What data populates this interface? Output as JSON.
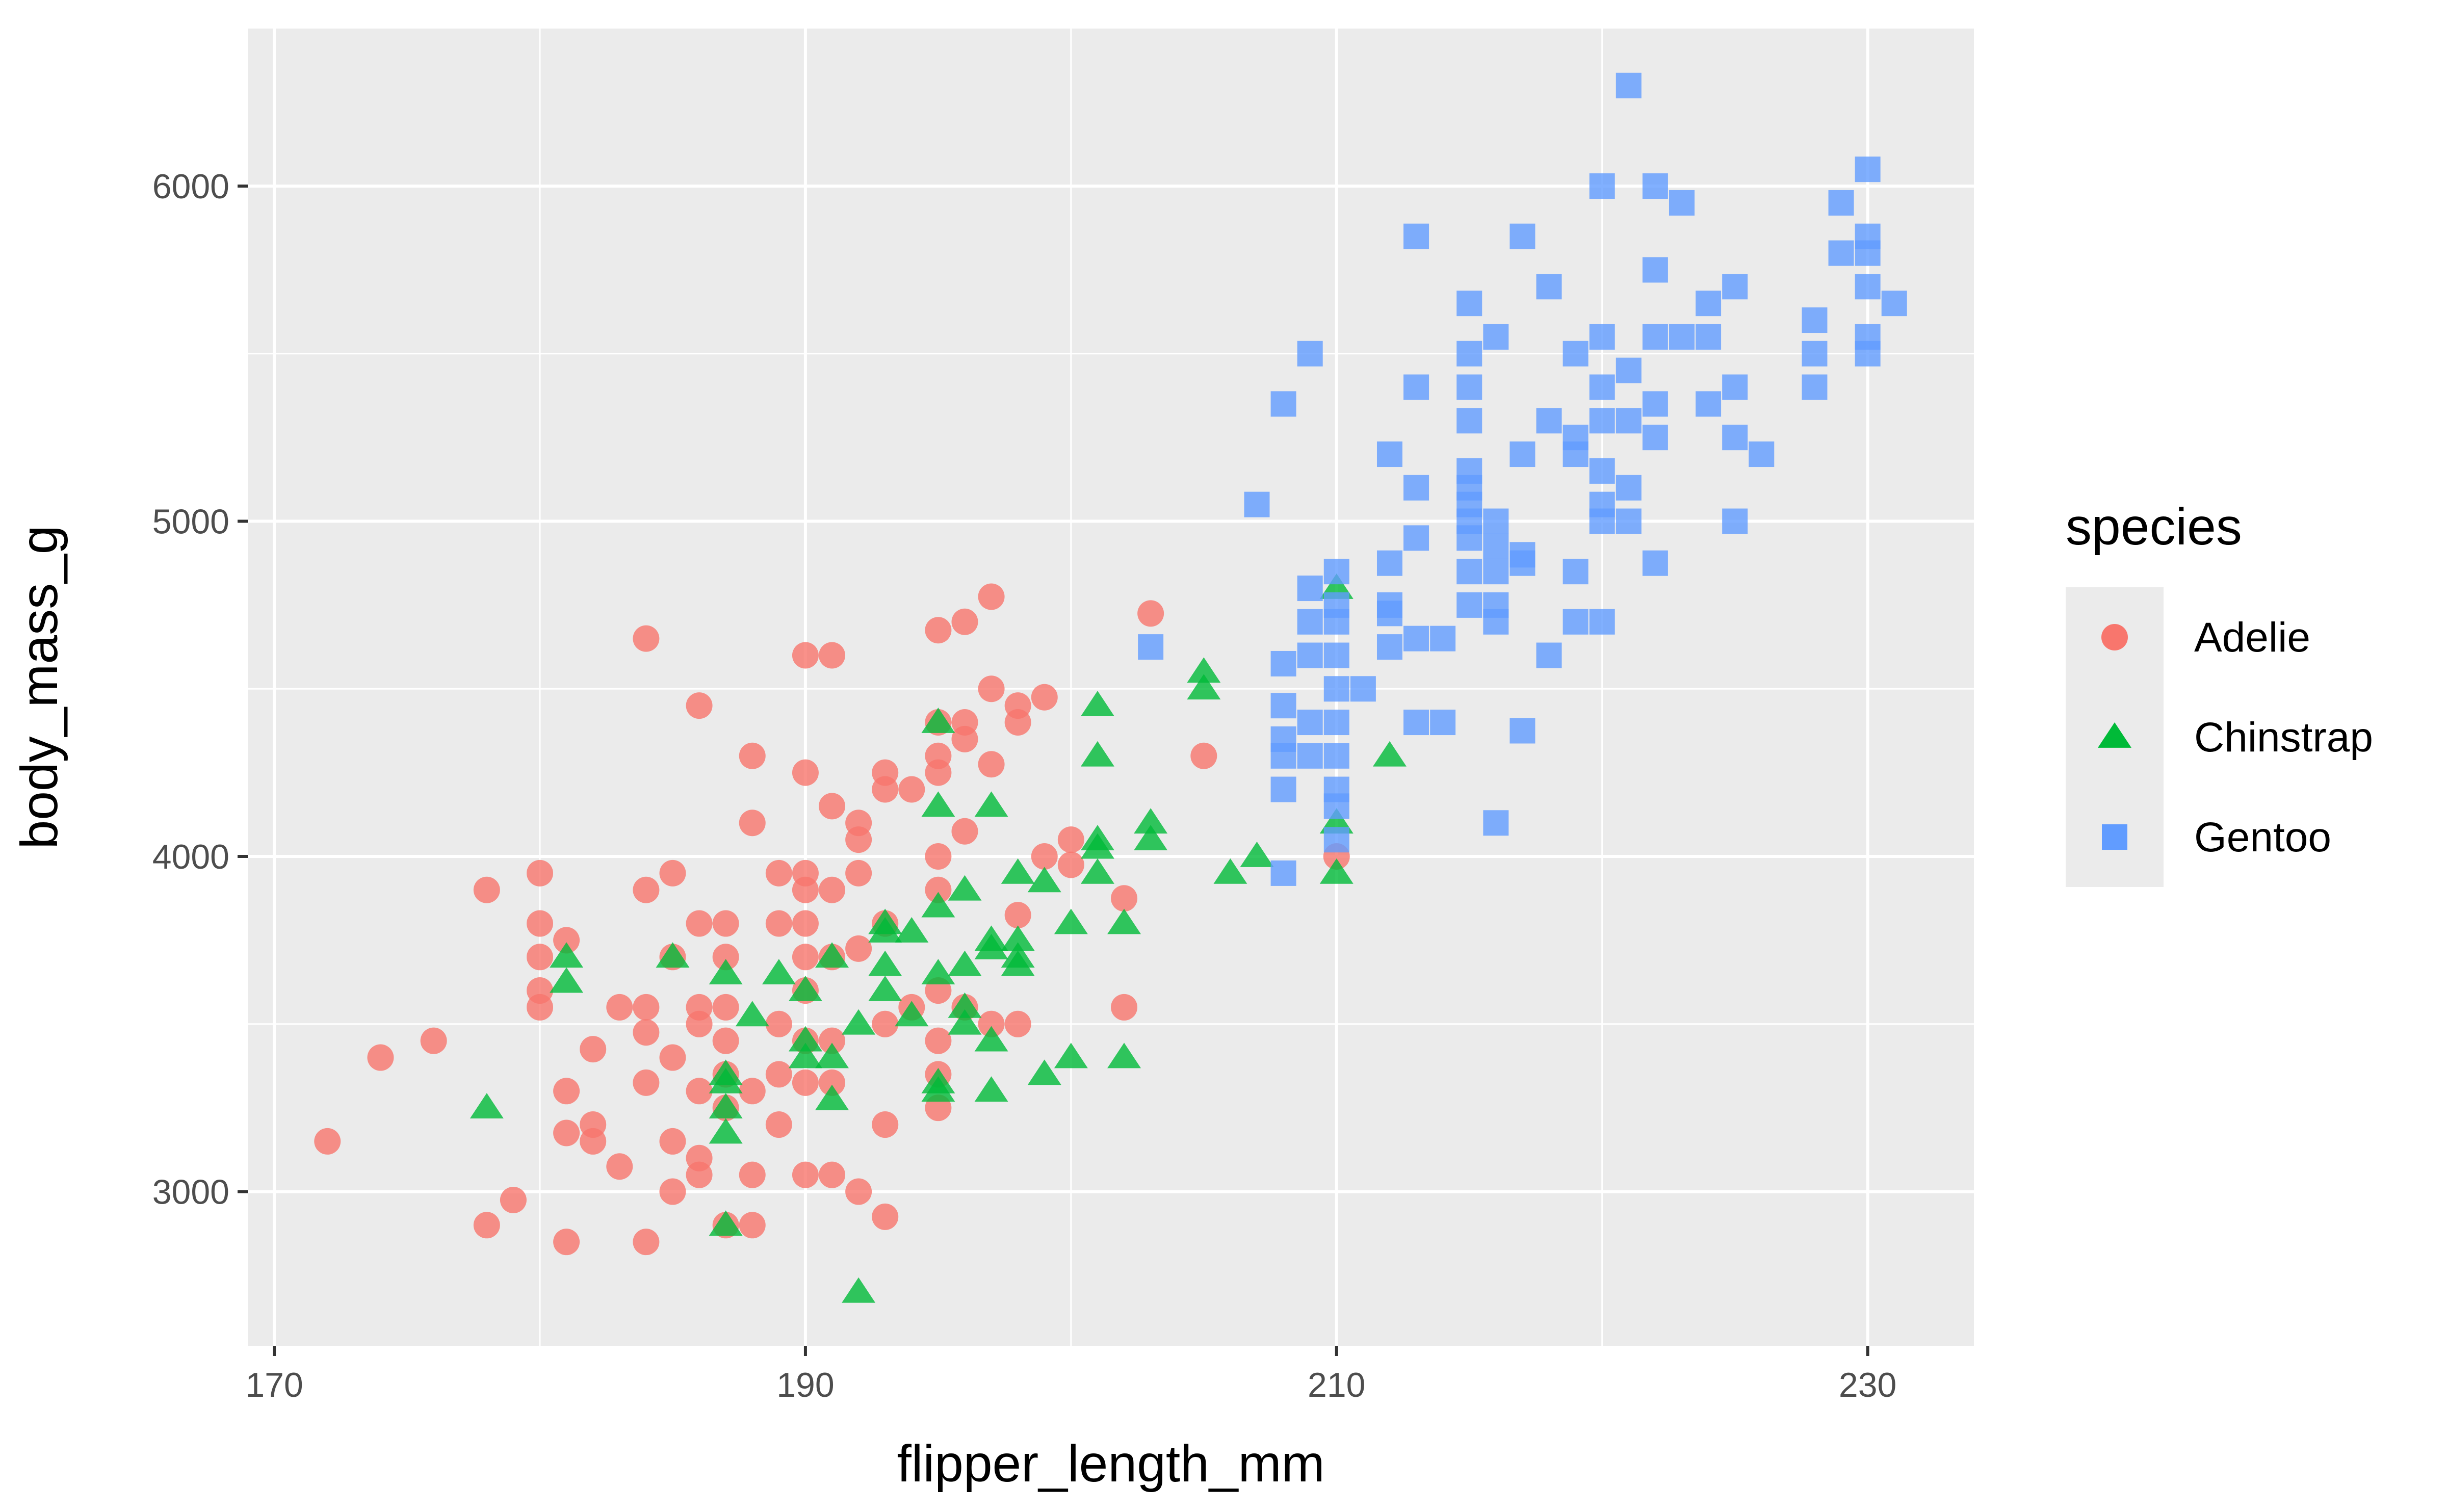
{
  "chart_data": {
    "type": "scatter",
    "xlabel": "flipper_length_mm",
    "ylabel": "body_mass_g",
    "xlim": [
      169,
      234
    ],
    "ylim": [
      2540,
      6470
    ],
    "x_ticks": [
      170,
      190,
      210,
      230
    ],
    "x_tick_labels": [
      "170",
      "190",
      "210",
      "230"
    ],
    "y_ticks": [
      3000,
      4000,
      5000,
      6000
    ],
    "y_tick_labels": [
      "3000",
      "4000",
      "5000",
      "6000"
    ],
    "grid": true,
    "legend": {
      "title": "species",
      "placement": "right"
    },
    "series": [
      {
        "name": "Adelie",
        "color": "#F8766D",
        "marker": "circle",
        "points": [
          [
            172,
            3150
          ],
          [
            174,
            3400
          ],
          [
            176,
            3450
          ],
          [
            178,
            3900
          ],
          [
            178,
            2900
          ],
          [
            179,
            2975
          ],
          [
            180,
            3950
          ],
          [
            180,
            3800
          ],
          [
            180,
            3700
          ],
          [
            180,
            3600
          ],
          [
            180,
            3550
          ],
          [
            181,
            3750
          ],
          [
            181,
            3300
          ],
          [
            181,
            3175
          ],
          [
            181,
            2850
          ],
          [
            182,
            3425
          ],
          [
            182,
            3200
          ],
          [
            182,
            3150
          ],
          [
            183,
            3550
          ],
          [
            183,
            3075
          ],
          [
            184,
            4650
          ],
          [
            184,
            3900
          ],
          [
            184,
            3550
          ],
          [
            184,
            3475
          ],
          [
            184,
            3325
          ],
          [
            184,
            2850
          ],
          [
            185,
            3950
          ],
          [
            185,
            3700
          ],
          [
            185,
            3400
          ],
          [
            185,
            3150
          ],
          [
            185,
            3000
          ],
          [
            186,
            4450
          ],
          [
            186,
            3800
          ],
          [
            186,
            3550
          ],
          [
            186,
            3500
          ],
          [
            186,
            3300
          ],
          [
            186,
            3100
          ],
          [
            186,
            3050
          ],
          [
            187,
            3800
          ],
          [
            187,
            3700
          ],
          [
            187,
            3550
          ],
          [
            187,
            3450
          ],
          [
            187,
            3350
          ],
          [
            187,
            3250
          ],
          [
            187,
            2900
          ],
          [
            188,
            4300
          ],
          [
            188,
            4100
          ],
          [
            188,
            3300
          ],
          [
            188,
            3050
          ],
          [
            188,
            2900
          ],
          [
            189,
            3950
          ],
          [
            189,
            3800
          ],
          [
            189,
            3500
          ],
          [
            189,
            3350
          ],
          [
            189,
            3200
          ],
          [
            190,
            4600
          ],
          [
            190,
            4250
          ],
          [
            190,
            3950
          ],
          [
            190,
            3900
          ],
          [
            190,
            3800
          ],
          [
            190,
            3700
          ],
          [
            190,
            3600
          ],
          [
            190,
            3450
          ],
          [
            190,
            3325
          ],
          [
            190,
            3050
          ],
          [
            191,
            4600
          ],
          [
            191,
            4150
          ],
          [
            191,
            3900
          ],
          [
            191,
            3700
          ],
          [
            191,
            3450
          ],
          [
            191,
            3325
          ],
          [
            191,
            3050
          ],
          [
            192,
            4100
          ],
          [
            192,
            4050
          ],
          [
            192,
            3950
          ],
          [
            192,
            3725
          ],
          [
            192,
            3000
          ],
          [
            193,
            4250
          ],
          [
            193,
            4200
          ],
          [
            193,
            3800
          ],
          [
            193,
            3500
          ],
          [
            193,
            3200
          ],
          [
            193,
            2925
          ],
          [
            194,
            4200
          ],
          [
            194,
            3550
          ],
          [
            195,
            4675
          ],
          [
            195,
            4400
          ],
          [
            195,
            4300
          ],
          [
            195,
            4250
          ],
          [
            195,
            4000
          ],
          [
            195,
            3900
          ],
          [
            195,
            3600
          ],
          [
            195,
            3450
          ],
          [
            195,
            3350
          ],
          [
            195,
            3250
          ],
          [
            196,
            4700
          ],
          [
            196,
            4400
          ],
          [
            196,
            4350
          ],
          [
            196,
            4075
          ],
          [
            196,
            3550
          ],
          [
            197,
            4775
          ],
          [
            197,
            4500
          ],
          [
            197,
            4275
          ],
          [
            197,
            3500
          ],
          [
            198,
            4450
          ],
          [
            198,
            4400
          ],
          [
            198,
            3825
          ],
          [
            198,
            3500
          ],
          [
            199,
            4475
          ],
          [
            199,
            4000
          ],
          [
            200,
            4050
          ],
          [
            200,
            3975
          ],
          [
            202,
            3875
          ],
          [
            202,
            3550
          ],
          [
            203,
            4725
          ],
          [
            205,
            4300
          ],
          [
            210,
            4000
          ]
        ]
      },
      {
        "name": "Chinstrap",
        "color": "#00BA38",
        "marker": "triangle",
        "points": [
          [
            178,
            3250
          ],
          [
            181,
            3700
          ],
          [
            181,
            3625
          ],
          [
            185,
            3700
          ],
          [
            187,
            3650
          ],
          [
            187,
            3350
          ],
          [
            187,
            3325
          ],
          [
            187,
            3250
          ],
          [
            187,
            3175
          ],
          [
            187,
            2900
          ],
          [
            188,
            3525
          ],
          [
            189,
            3650
          ],
          [
            190,
            3600
          ],
          [
            190,
            3450
          ],
          [
            190,
            3400
          ],
          [
            191,
            3700
          ],
          [
            191,
            3400
          ],
          [
            191,
            3275
          ],
          [
            192,
            3500
          ],
          [
            192,
            2700
          ],
          [
            193,
            3800
          ],
          [
            193,
            3775
          ],
          [
            193,
            3675
          ],
          [
            193,
            3600
          ],
          [
            194,
            3775
          ],
          [
            194,
            3525
          ],
          [
            195,
            4400
          ],
          [
            195,
            4150
          ],
          [
            195,
            3850
          ],
          [
            195,
            3650
          ],
          [
            195,
            3325
          ],
          [
            195,
            3300
          ],
          [
            196,
            3900
          ],
          [
            196,
            3675
          ],
          [
            196,
            3550
          ],
          [
            196,
            3500
          ],
          [
            197,
            4150
          ],
          [
            197,
            3750
          ],
          [
            197,
            3725
          ],
          [
            197,
            3450
          ],
          [
            197,
            3300
          ],
          [
            198,
            3950
          ],
          [
            198,
            3750
          ],
          [
            198,
            3700
          ],
          [
            198,
            3675
          ],
          [
            199,
            3925
          ],
          [
            199,
            3350
          ],
          [
            200,
            3800
          ],
          [
            200,
            3400
          ],
          [
            201,
            4450
          ],
          [
            201,
            4300
          ],
          [
            201,
            4050
          ],
          [
            201,
            4025
          ],
          [
            201,
            3950
          ],
          [
            202,
            3800
          ],
          [
            202,
            3400
          ],
          [
            203,
            4100
          ],
          [
            203,
            4050
          ],
          [
            205,
            4550
          ],
          [
            205,
            4500
          ],
          [
            206,
            3950
          ],
          [
            207,
            4000
          ],
          [
            210,
            4800
          ],
          [
            210,
            4100
          ],
          [
            210,
            3950
          ],
          [
            212,
            4300
          ]
        ]
      },
      {
        "name": "Gentoo",
        "color": "#619CFF",
        "marker": "square",
        "points": [
          [
            203,
            4625
          ],
          [
            207,
            5050
          ],
          [
            208,
            5350
          ],
          [
            208,
            4575
          ],
          [
            208,
            4450
          ],
          [
            208,
            4350
          ],
          [
            208,
            4300
          ],
          [
            208,
            4200
          ],
          [
            208,
            3950
          ],
          [
            209,
            5500
          ],
          [
            209,
            4800
          ],
          [
            209,
            4700
          ],
          [
            209,
            4600
          ],
          [
            209,
            4400
          ],
          [
            209,
            4300
          ],
          [
            210,
            4850
          ],
          [
            210,
            4750
          ],
          [
            210,
            4700
          ],
          [
            210,
            4600
          ],
          [
            210,
            4500
          ],
          [
            210,
            4400
          ],
          [
            210,
            4300
          ],
          [
            210,
            4200
          ],
          [
            210,
            4150
          ],
          [
            210,
            4050
          ],
          [
            211,
            4500
          ],
          [
            212,
            5200
          ],
          [
            212,
            4875
          ],
          [
            212,
            4750
          ],
          [
            212,
            4725
          ],
          [
            212,
            4625
          ],
          [
            213,
            5850
          ],
          [
            213,
            5400
          ],
          [
            213,
            5100
          ],
          [
            213,
            4950
          ],
          [
            213,
            4650
          ],
          [
            213,
            4400
          ],
          [
            214,
            4650
          ],
          [
            214,
            4400
          ],
          [
            215,
            5650
          ],
          [
            215,
            5500
          ],
          [
            215,
            5400
          ],
          [
            215,
            5300
          ],
          [
            215,
            5150
          ],
          [
            215,
            5100
          ],
          [
            215,
            5050
          ],
          [
            215,
            5000
          ],
          [
            215,
            4950
          ],
          [
            215,
            4850
          ],
          [
            215,
            4750
          ],
          [
            216,
            5550
          ],
          [
            216,
            5000
          ],
          [
            216,
            4925
          ],
          [
            216,
            4850
          ],
          [
            216,
            4750
          ],
          [
            216,
            4700
          ],
          [
            216,
            4100
          ],
          [
            217,
            5850
          ],
          [
            217,
            5200
          ],
          [
            217,
            4900
          ],
          [
            217,
            4875
          ],
          [
            217,
            4375
          ],
          [
            218,
            5700
          ],
          [
            218,
            5300
          ],
          [
            218,
            4600
          ],
          [
            219,
            5500
          ],
          [
            219,
            5250
          ],
          [
            219,
            5200
          ],
          [
            219,
            4850
          ],
          [
            219,
            4700
          ],
          [
            220,
            6000
          ],
          [
            220,
            5550
          ],
          [
            220,
            5400
          ],
          [
            220,
            5300
          ],
          [
            220,
            5150
          ],
          [
            220,
            5050
          ],
          [
            220,
            5000
          ],
          [
            220,
            4700
          ],
          [
            221,
            6300
          ],
          [
            221,
            5450
          ],
          [
            221,
            5300
          ],
          [
            221,
            5100
          ],
          [
            221,
            5000
          ],
          [
            222,
            6000
          ],
          [
            222,
            5750
          ],
          [
            222,
            5550
          ],
          [
            222,
            5350
          ],
          [
            222,
            5250
          ],
          [
            222,
            4875
          ],
          [
            223,
            5950
          ],
          [
            223,
            5550
          ],
          [
            224,
            5650
          ],
          [
            224,
            5550
          ],
          [
            224,
            5350
          ],
          [
            225,
            5700
          ],
          [
            225,
            5400
          ],
          [
            225,
            5250
          ],
          [
            225,
            5000
          ],
          [
            226,
            5200
          ],
          [
            228,
            5600
          ],
          [
            228,
            5500
          ],
          [
            228,
            5400
          ],
          [
            229,
            5950
          ],
          [
            229,
            5800
          ],
          [
            230,
            6050
          ],
          [
            230,
            5850
          ],
          [
            230,
            5800
          ],
          [
            230,
            5700
          ],
          [
            230,
            5550
          ],
          [
            230,
            5500
          ],
          [
            231,
            5650
          ]
        ]
      }
    ]
  }
}
